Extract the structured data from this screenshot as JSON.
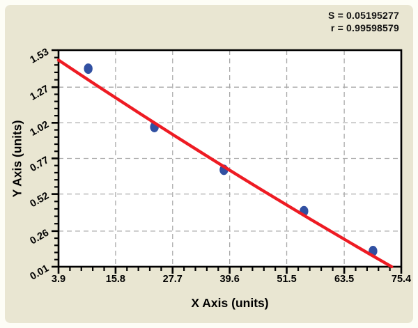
{
  "page": {
    "background": "#fdfdf6",
    "panel_color": "#e9e6d2"
  },
  "chart_data": {
    "type": "scatter",
    "title": "",
    "xlabel": "X Axis (units)",
    "ylabel": "Y Axis (units)",
    "xlim": [
      3.9,
      75.4
    ],
    "ylim": [
      0.01,
      1.53
    ],
    "x_tick_values": [
      3.9,
      15.8,
      27.7,
      39.6,
      51.5,
      63.5,
      75.4
    ],
    "x_tick_labels": [
      "3.9",
      "15.8",
      "27.7",
      "39.6",
      "51.5",
      "63.5",
      "75.4"
    ],
    "y_tick_values": [
      0.01,
      0.26,
      0.52,
      0.77,
      1.02,
      1.27,
      1.53
    ],
    "y_tick_labels": [
      "0.01",
      "0.26",
      "0.52",
      "0.77",
      "1.02",
      "1.27",
      "1.53"
    ],
    "minor_ticks_per_interval": 4,
    "grid": "dashed",
    "legend": "none",
    "annotations": [
      "S = 0.05195277",
      "r = 0.99598579"
    ],
    "series": [
      {
        "name": "standard-points",
        "type": "scatter",
        "points": [
          [
            10.1,
            1.4
          ],
          [
            23.9,
            0.99
          ],
          [
            38.4,
            0.69
          ],
          [
            55.1,
            0.4
          ],
          [
            69.5,
            0.12
          ]
        ]
      },
      {
        "name": "fit-line",
        "type": "curve",
        "points": [
          [
            3.9,
            1.46
          ],
          [
            38.6,
            0.68
          ],
          [
            73.4,
            0.01
          ]
        ]
      }
    ],
    "colors": {
      "plot_background": "#ffffff",
      "point_fill": "#3150a2",
      "line_stroke": "#ee1b23",
      "grid_line": "#aaaaaa",
      "axis": "#000000",
      "text": "#000000"
    }
  }
}
